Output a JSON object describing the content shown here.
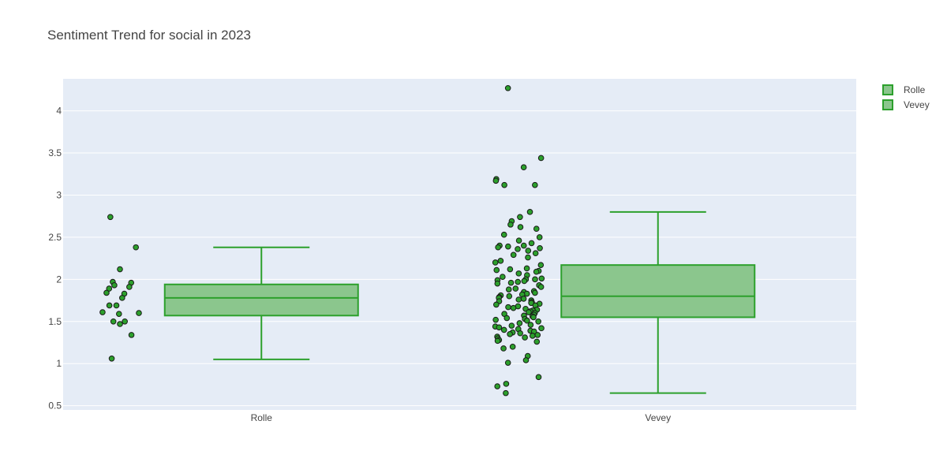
{
  "chart_data": {
    "type": "box",
    "title": "Sentiment Trend for social in 2023",
    "xlabel": "",
    "ylabel": "",
    "categories": [
      "Rolle",
      "Vevey"
    ],
    "y_ticks": [
      0.5,
      1,
      1.5,
      2,
      2.5,
      3,
      3.5,
      4
    ],
    "y_tick_labels": [
      "0.5",
      "1",
      "1.5",
      "2",
      "2.5",
      "3",
      "3.5",
      "4"
    ],
    "ylim": [
      0.45,
      4.38
    ],
    "grid": true,
    "legend_position": "top-right",
    "colors": {
      "plot_bg": "#e5ecf6",
      "grid": "#ffffff",
      "box_fill": "#8bc68d",
      "box_line": "#2ca02c",
      "point_fill": "#2ca02c",
      "point_edge": "#1a1a1a",
      "text": "#444444"
    },
    "series": [
      {
        "name": "Rolle",
        "stats": {
          "lower_fence": 1.05,
          "q1": 1.57,
          "median": 1.78,
          "q3": 1.94,
          "upper_fence": 2.38
        },
        "points": [
          2.74,
          2.38,
          2.12,
          1.97,
          1.96,
          1.93,
          1.91,
          1.89,
          1.84,
          1.83,
          1.78,
          1.69,
          1.69,
          1.61,
          1.6,
          1.59,
          1.5,
          1.5,
          1.47,
          1.34,
          1.06
        ]
      },
      {
        "name": "Vevey",
        "stats": {
          "lower_fence": 0.65,
          "q1": 1.55,
          "median": 1.8,
          "q3": 2.17,
          "upper_fence": 2.8
        },
        "points": [
          4.27,
          3.44,
          3.33,
          3.19,
          3.17,
          3.12,
          3.12,
          2.8,
          2.74,
          2.69,
          2.65,
          2.62,
          2.6,
          2.53,
          2.5,
          2.46,
          2.43,
          2.4,
          2.4,
          2.39,
          2.38,
          2.37,
          2.36,
          2.34,
          2.31,
          2.29,
          2.26,
          2.22,
          2.2,
          2.17,
          2.13,
          2.12,
          2.11,
          2.1,
          2.09,
          2.07,
          2.05,
          2.03,
          2.01,
          2.0,
          2.0,
          1.99,
          1.98,
          1.97,
          1.96,
          1.95,
          1.93,
          1.91,
          1.89,
          1.88,
          1.86,
          1.85,
          1.84,
          1.83,
          1.82,
          1.81,
          1.8,
          1.79,
          1.78,
          1.77,
          1.76,
          1.75,
          1.74,
          1.73,
          1.72,
          1.71,
          1.7,
          1.69,
          1.68,
          1.67,
          1.66,
          1.65,
          1.64,
          1.63,
          1.62,
          1.61,
          1.6,
          1.59,
          1.58,
          1.57,
          1.56,
          1.55,
          1.54,
          1.53,
          1.52,
          1.51,
          1.5,
          1.48,
          1.46,
          1.45,
          1.44,
          1.43,
          1.42,
          1.41,
          1.4,
          1.39,
          1.38,
          1.37,
          1.36,
          1.35,
          1.34,
          1.33,
          1.32,
          1.31,
          1.3,
          1.28,
          1.27,
          1.26,
          1.2,
          1.18,
          1.09,
          1.04,
          1.01,
          0.84,
          0.76,
          0.73,
          0.65
        ]
      }
    ]
  }
}
